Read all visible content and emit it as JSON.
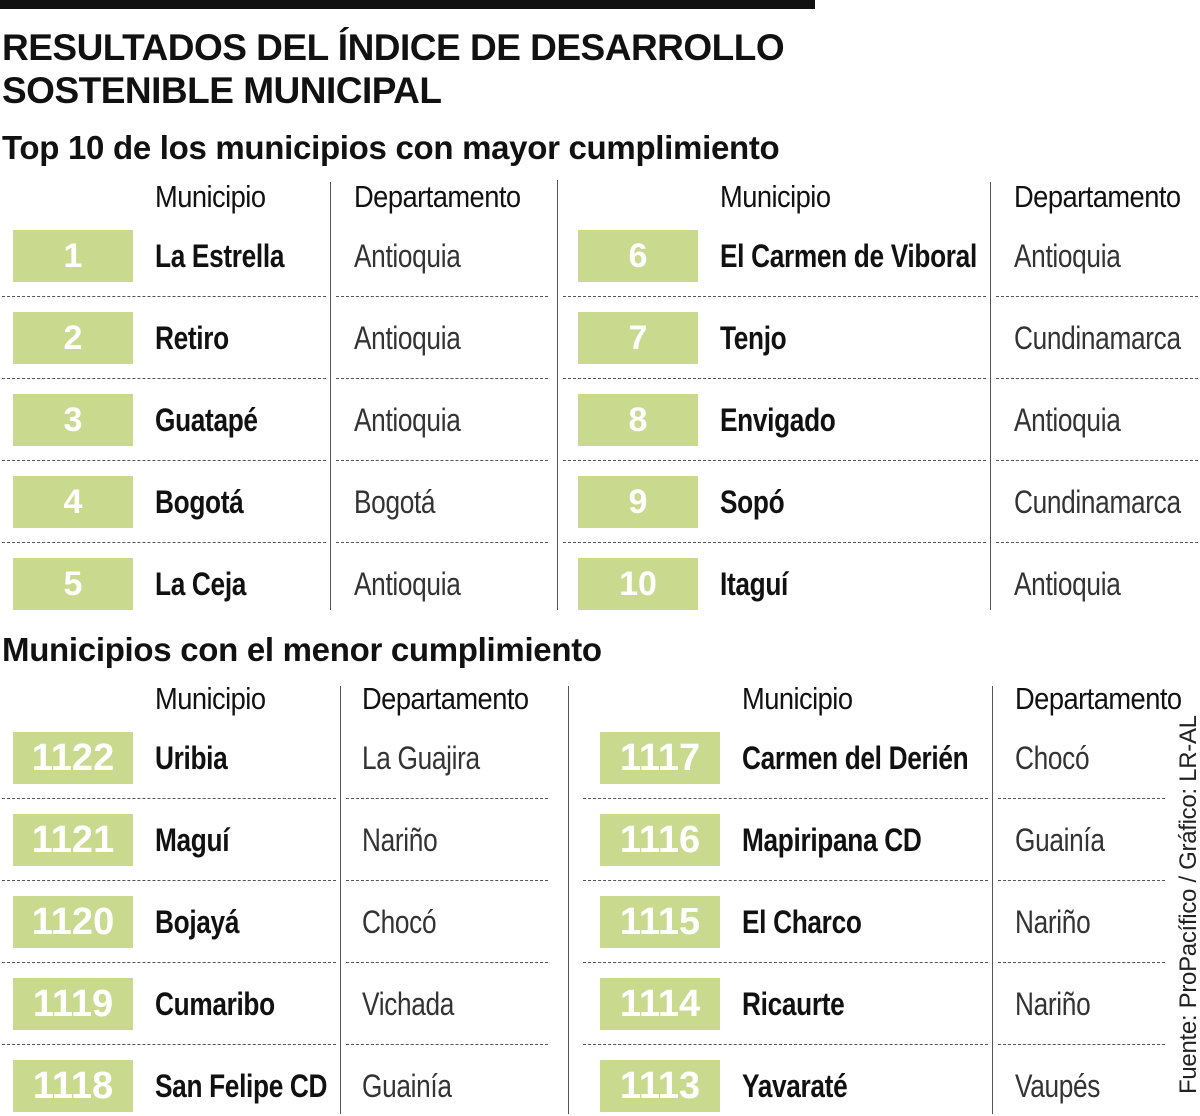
{
  "title": "RESULTADOS DEL ÍNDICE DE DESARROLLO SOSTENIBLE MUNICIPAL",
  "colors": {
    "badge": "#c9da8f",
    "badge_text": "#ffffff",
    "rule": "#111111"
  },
  "source": "Fuente: ProPacífico / Gráfico: LR-AL",
  "top": {
    "heading": "Top 10 de los municipios con mayor cumplimiento",
    "col_municipio": "Municipio",
    "col_departamento": "Departamento",
    "left": [
      {
        "rank": "1",
        "municipio": "La Estrella",
        "departamento": "Antioquia"
      },
      {
        "rank": "2",
        "municipio": "Retiro",
        "departamento": "Antioquia"
      },
      {
        "rank": "3",
        "municipio": "Guatapé",
        "departamento": "Antioquia"
      },
      {
        "rank": "4",
        "municipio": "Bogotá",
        "departamento": "Bogotá"
      },
      {
        "rank": "5",
        "municipio": "La Ceja",
        "departamento": "Antioquia"
      }
    ],
    "right": [
      {
        "rank": "6",
        "municipio": "El Carmen de Viboral",
        "departamento": "Antioquia"
      },
      {
        "rank": "7",
        "municipio": "Tenjo",
        "departamento": "Cundinamarca"
      },
      {
        "rank": "8",
        "municipio": "Envigado",
        "departamento": "Antioquia"
      },
      {
        "rank": "9",
        "municipio": "Sopó",
        "departamento": "Cundinamarca"
      },
      {
        "rank": "10",
        "municipio": "Itaguí",
        "departamento": "Antioquia"
      }
    ]
  },
  "bottom": {
    "heading": "Municipios con el menor cumplimiento",
    "col_municipio": "Municipio",
    "col_departamento": "Departamento",
    "left": [
      {
        "rank": "1122",
        "municipio": "Uribia",
        "departamento": "La Guajira"
      },
      {
        "rank": "1121",
        "municipio": "Maguí",
        "departamento": "Nariño"
      },
      {
        "rank": "1120",
        "municipio": "Bojayá",
        "departamento": "Chocó"
      },
      {
        "rank": "1119",
        "municipio": "Cumaribo",
        "departamento": "Vichada"
      },
      {
        "rank": "1118",
        "municipio": "San Felipe CD",
        "departamento": "Guainía"
      }
    ],
    "right": [
      {
        "rank": "1117",
        "municipio": "Carmen del Derién",
        "departamento": "Chocó"
      },
      {
        "rank": "1116",
        "municipio": "Mapiripana CD",
        "departamento": "Guainía"
      },
      {
        "rank": "1115",
        "municipio": "El Charco",
        "departamento": "Nariño"
      },
      {
        "rank": "1114",
        "municipio": "Ricaurte",
        "departamento": "Nariño"
      },
      {
        "rank": "1113",
        "municipio": "Yavaraté",
        "departamento": "Vaupés"
      }
    ]
  }
}
